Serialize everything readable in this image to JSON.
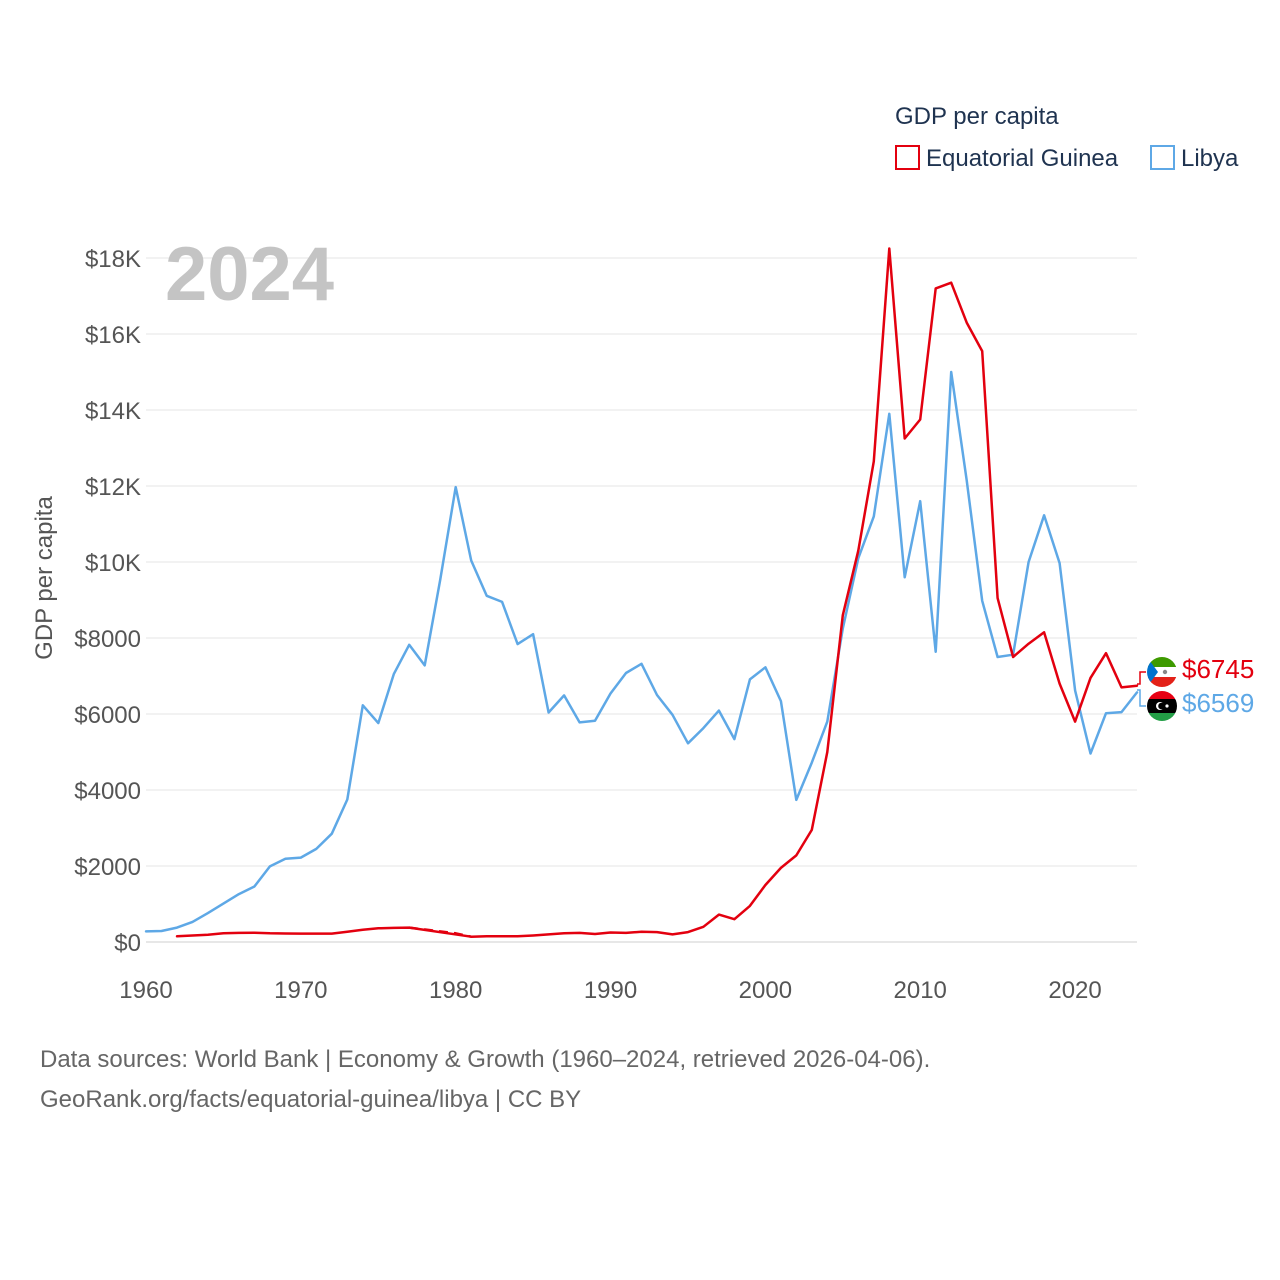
{
  "chart_data": {
    "type": "line",
    "big_year": "2024",
    "ylabel": "GDP per capita",
    "xlim": [
      1960,
      2024
    ],
    "ylim": [
      0,
      18000
    ],
    "x_ticks": [
      1960,
      1970,
      1980,
      1990,
      2000,
      2010,
      2020
    ],
    "x_tick_labels": [
      "1960",
      "1970",
      "1980",
      "1990",
      "2000",
      "2010",
      "2020"
    ],
    "y_ticks": [
      0,
      2000,
      4000,
      6000,
      8000,
      10000,
      12000,
      14000,
      16000,
      18000
    ],
    "y_tick_labels": [
      "$0",
      "$2000",
      "$4000",
      "$6000",
      "$8000",
      "$10K",
      "$12K",
      "$14K",
      "$16K",
      "$18K"
    ],
    "legend": {
      "title": "GDP per capita",
      "position": "top-right",
      "entries": [
        "Equatorial Guinea",
        "Libya"
      ]
    },
    "series": [
      {
        "name": "Equatorial Guinea",
        "color": "#e3000f",
        "end_label": "$6745",
        "x": [
          1962,
          1963,
          1964,
          1965,
          1966,
          1967,
          1968,
          1969,
          1970,
          1971,
          1972,
          1973,
          1974,
          1975,
          1976,
          1977,
          1981,
          1982,
          1983,
          1984,
          1985,
          1986,
          1987,
          1988,
          1989,
          1990,
          1991,
          1992,
          1993,
          1994,
          1995,
          1996,
          1997,
          1998,
          1999,
          2000,
          2001,
          2002,
          2003,
          2004,
          2005,
          2006,
          2007,
          2008,
          2009,
          2010,
          2011,
          2012,
          2013,
          2014,
          2015,
          2016,
          2017,
          2018,
          2019,
          2020,
          2021,
          2022,
          2023,
          2024
        ],
        "values": [
          150,
          170,
          190,
          230,
          240,
          245,
          230,
          225,
          220,
          220,
          220,
          270,
          320,
          360,
          370,
          380,
          140,
          150,
          150,
          150,
          170,
          200,
          230,
          240,
          210,
          250,
          240,
          270,
          260,
          200,
          260,
          400,
          720,
          600,
          950,
          1500,
          1950,
          2280,
          2950,
          5000,
          8600,
          10300,
          12650,
          18250,
          13250,
          13750,
          17200,
          17350,
          16300,
          15550,
          9050,
          7500,
          7850,
          8150,
          6800,
          5800,
          6950,
          7600,
          6700,
          6745
        ],
        "gap": {
          "x": [
            1977,
            1980,
            1981
          ],
          "values": [
            380,
            230,
            140
          ]
        }
      },
      {
        "name": "Libya",
        "color": "#5ea8e6",
        "end_label": "$6569",
        "x": [
          1960,
          1961,
          1962,
          1963,
          1964,
          1965,
          1966,
          1967,
          1968,
          1969,
          1970,
          1971,
          1972,
          1973,
          1974,
          1975,
          1976,
          1977,
          1978,
          1979,
          1980,
          1981,
          1982,
          1983,
          1984,
          1985,
          1986,
          1987,
          1988,
          1989,
          1990,
          1991,
          1992,
          1993,
          1994,
          1995,
          1996,
          1997,
          1998,
          1999,
          2000,
          2001,
          2002,
          2003,
          2004,
          2005,
          2006,
          2007,
          2008,
          2009,
          2010,
          2011,
          2012,
          2013,
          2014,
          2015,
          2016,
          2017,
          2018,
          2019,
          2020,
          2021,
          2022,
          2023,
          2024
        ],
        "values": [
          280,
          290,
          380,
          530,
          760,
          1010,
          1260,
          1460,
          1990,
          2190,
          2220,
          2450,
          2850,
          3750,
          6230,
          5760,
          7050,
          7820,
          7280,
          9530,
          11970,
          10040,
          9110,
          8950,
          7840,
          8100,
          6040,
          6490,
          5780,
          5820,
          6540,
          7080,
          7320,
          6500,
          5980,
          5230,
          5630,
          6090,
          5340,
          6910,
          7230,
          6340,
          3740,
          4720,
          5800,
          8250,
          10100,
          11200,
          13900,
          9600,
          11600,
          7640,
          15000,
          12150,
          8980,
          7500,
          7560,
          10000,
          11230,
          9970,
          6620,
          4960,
          6020,
          6050,
          6569
        ]
      }
    ],
    "flags": [
      {
        "country": "Equatorial Guinea"
      },
      {
        "country": "Libya"
      }
    ]
  },
  "footer": {
    "line1": "Data sources: World Bank | Economy & Growth (1960–2024, retrieved 2026-04-06).",
    "line2": "GeoRank.org/facts/equatorial-guinea/libya | CC BY"
  }
}
